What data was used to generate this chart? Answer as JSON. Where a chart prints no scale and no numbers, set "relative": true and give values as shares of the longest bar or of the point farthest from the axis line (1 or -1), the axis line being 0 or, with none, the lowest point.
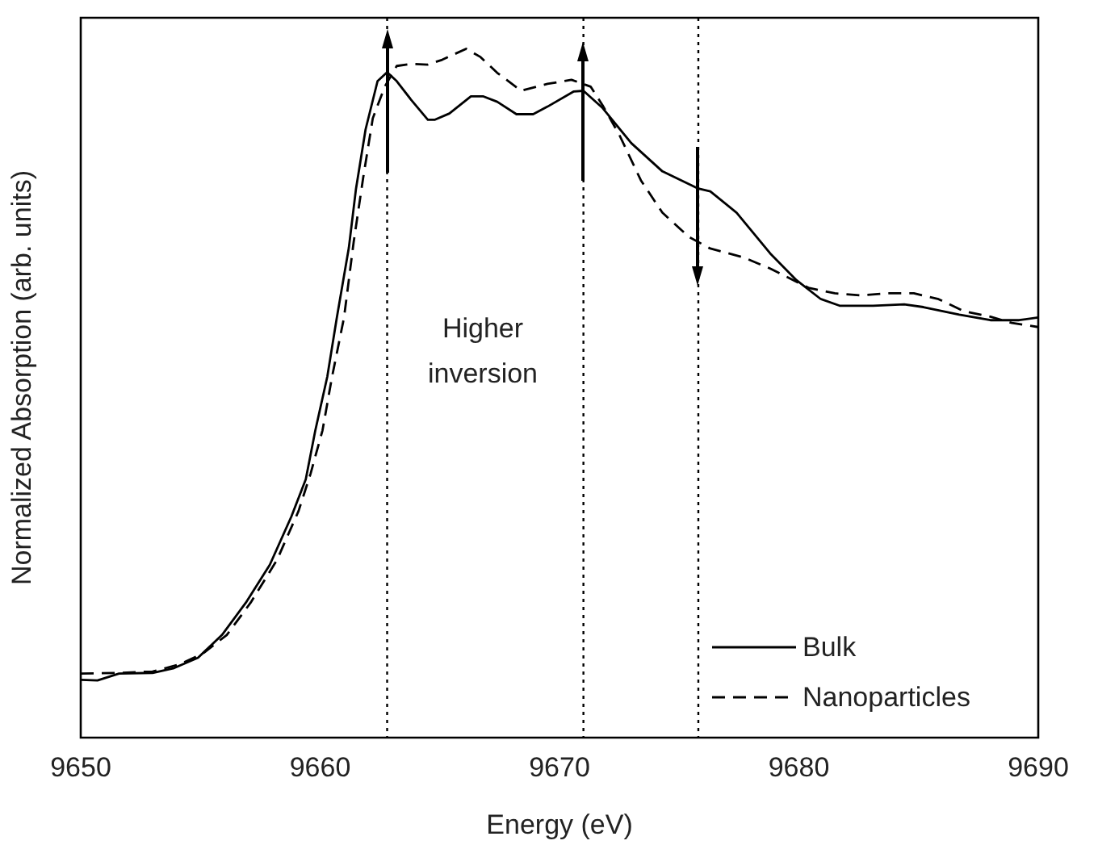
{
  "chart_data": {
    "type": "line",
    "xlabel": "Energy (eV)",
    "ylabel": "Normalized Absorption (arb. units)",
    "relative": true,
    "xlim": [
      9650,
      9690
    ],
    "xticks": [
      9650,
      9660,
      9670,
      9680,
      9690
    ],
    "grid": false,
    "legend": "bottom right",
    "marker": "none",
    "annotations": [
      "Higher inversion"
    ],
    "ref_lines": [
      {
        "axis": "x",
        "value": 9662.8,
        "line_style": "dotted",
        "color": "#000000"
      },
      {
        "axis": "x",
        "value": 9671.0,
        "line_style": "dotted",
        "color": "#000000"
      },
      {
        "axis": "x",
        "value": 9675.8,
        "line_style": "dotted",
        "color": "#000000"
      }
    ],
    "series": [
      {
        "name": "Bulk",
        "color": "#000000",
        "line_style": "solid",
        "x": [
          9650,
          9650.7,
          9651.6,
          9653.0,
          9653.9,
          9654.9,
          9655.9,
          9656.9,
          9657.9,
          9658.8,
          9659.4,
          9659.8,
          9660.3,
          9660.7,
          9661.2,
          9661.5,
          9661.9,
          9662.4,
          9662.8,
          9663.2,
          9663.8,
          9664.5,
          9664.8,
          9665.4,
          9666.3,
          9666.8,
          9667.4,
          9668.2,
          9668.9,
          9669.5,
          9670.6,
          9671.0,
          9671.8,
          9673.0,
          9674.3,
          9675.8,
          9676.3,
          9677.4,
          9678.8,
          9679.9,
          9680.9,
          9681.7,
          9683.1,
          9684.4,
          9685.2,
          9686.7,
          9688.0,
          9689.2,
          9690
        ],
        "values": [
          0.084,
          0.083,
          0.093,
          0.094,
          0.101,
          0.116,
          0.149,
          0.196,
          0.251,
          0.321,
          0.375,
          0.446,
          0.524,
          0.61,
          0.711,
          0.797,
          0.883,
          0.953,
          0.966,
          0.953,
          0.926,
          0.897,
          0.897,
          0.906,
          0.931,
          0.931,
          0.923,
          0.905,
          0.905,
          0.916,
          0.938,
          0.939,
          0.914,
          0.863,
          0.822,
          0.797,
          0.793,
          0.762,
          0.703,
          0.664,
          0.637,
          0.627,
          0.627,
          0.629,
          0.625,
          0.614,
          0.606,
          0.606,
          0.61
        ]
      },
      {
        "name": "Nanoparticles",
        "color": "#000000",
        "line_style": "dashed",
        "x": [
          9650,
          9651.6,
          9653.0,
          9654.1,
          9655.1,
          9656.1,
          9657.1,
          9658.2,
          9659.1,
          9659.6,
          9660.1,
          9660.5,
          9661.0,
          9661.4,
          9661.8,
          9662.2,
          9662.7,
          9663.2,
          9663.8,
          9664.5,
          9665.1,
          9666.1,
          9666.7,
          9667.4,
          9668.4,
          9669.5,
          9670.5,
          9671.3,
          9671.8,
          9672.5,
          9673.4,
          9674.3,
          9675.4,
          9676.3,
          9677.7,
          9678.8,
          9680.4,
          9681.5,
          9682.6,
          9683.7,
          9684.8,
          9685.8,
          9686.9,
          9688.0,
          9688.9,
          9690
        ],
        "values": [
          0.093,
          0.094,
          0.096,
          0.106,
          0.122,
          0.149,
          0.196,
          0.258,
          0.329,
          0.383,
          0.446,
          0.524,
          0.61,
          0.719,
          0.813,
          0.899,
          0.945,
          0.975,
          0.978,
          0.977,
          0.984,
          1.0,
          0.988,
          0.965,
          0.939,
          0.949,
          0.955,
          0.945,
          0.918,
          0.875,
          0.809,
          0.762,
          0.727,
          0.71,
          0.697,
          0.681,
          0.653,
          0.645,
          0.642,
          0.645,
          0.645,
          0.637,
          0.619,
          0.611,
          0.602,
          0.596
        ]
      }
    ]
  }
}
